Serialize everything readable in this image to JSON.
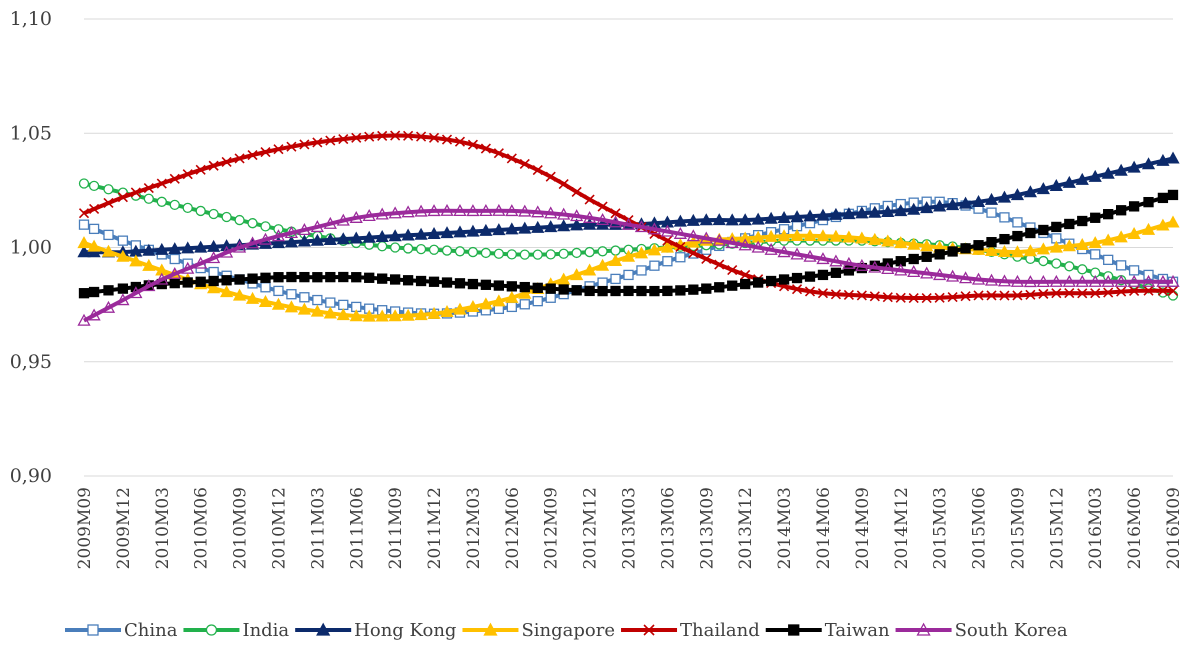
{
  "chart_data": {
    "type": "line",
    "title": "",
    "xlabel": "",
    "ylabel": "",
    "ylim": [
      0.9,
      1.1
    ],
    "y_ticks": [
      "0,90",
      "0,95",
      "1,00",
      "1,05",
      "1,10"
    ],
    "y_tick_values": [
      0.9,
      0.95,
      1.0,
      1.05,
      1.1
    ],
    "grid": "horizontal",
    "legend_position": "bottom",
    "x_tick_labels": [
      "2009M09",
      "2009M12",
      "2010M03",
      "2010M06",
      "2010M09",
      "2010M12",
      "2011M03",
      "2011M06",
      "2011M09",
      "2011M12",
      "2012M03",
      "2012M06",
      "2012M09",
      "2012M12",
      "2013M03",
      "2013M06",
      "2013M09",
      "2013M12",
      "2014M03",
      "2014M06",
      "2014M09",
      "2014M12",
      "2015M03",
      "2015M06",
      "2015M09",
      "2015M12",
      "2016M03",
      "2016M06",
      "2016M09"
    ],
    "x": [
      "2009M09",
      "2009M12",
      "2010M03",
      "2010M06",
      "2010M09",
      "2010M12",
      "2011M03",
      "2011M06",
      "2011M09",
      "2011M12",
      "2012M03",
      "2012M06",
      "2012M09",
      "2012M12",
      "2013M03",
      "2013M06",
      "2013M09",
      "2013M12",
      "2014M03",
      "2014M06",
      "2014M09",
      "2014M12",
      "2015M03",
      "2015M06",
      "2015M09",
      "2015M12",
      "2016M03",
      "2016M06",
      "2016M09"
    ],
    "series": [
      {
        "name": "China",
        "color": "#4a7ebb",
        "marker": "square-open",
        "values": [
          1.01,
          1.003,
          0.997,
          0.991,
          0.986,
          0.981,
          0.977,
          0.974,
          0.972,
          0.971,
          0.972,
          0.974,
          0.978,
          0.983,
          0.988,
          0.994,
          0.999,
          1.004,
          1.008,
          1.012,
          1.016,
          1.019,
          1.02,
          1.017,
          1.011,
          1.004,
          0.997,
          0.99,
          0.985
        ]
      },
      {
        "name": "India",
        "color": "#22b14c",
        "marker": "circle-open",
        "values": [
          1.028,
          1.024,
          1.02,
          1.016,
          1.012,
          1.008,
          1.005,
          1.002,
          1.0,
          0.999,
          0.998,
          0.997,
          0.997,
          0.998,
          0.999,
          1.0,
          1.001,
          1.002,
          1.003,
          1.003,
          1.003,
          1.002,
          1.001,
          0.999,
          0.996,
          0.993,
          0.989,
          0.984,
          0.979
        ]
      },
      {
        "name": "Hong Kong",
        "color": "#0c2a6b",
        "marker": "triangle-filled",
        "values": [
          0.998,
          0.998,
          0.999,
          1.0,
          1.001,
          1.002,
          1.003,
          1.004,
          1.005,
          1.006,
          1.007,
          1.008,
          1.009,
          1.01,
          1.01,
          1.011,
          1.012,
          1.012,
          1.013,
          1.014,
          1.015,
          1.016,
          1.018,
          1.02,
          1.023,
          1.027,
          1.031,
          1.035,
          1.039
        ]
      },
      {
        "name": "Singapore",
        "color": "#ffc000",
        "marker": "triangle-filled",
        "values": [
          1.002,
          0.996,
          0.99,
          0.984,
          0.979,
          0.975,
          0.972,
          0.97,
          0.97,
          0.971,
          0.974,
          0.978,
          0.984,
          0.99,
          0.996,
          1.0,
          1.003,
          1.004,
          1.005,
          1.005,
          1.004,
          1.002,
          1.0,
          0.999,
          0.998,
          1.0,
          1.002,
          1.006,
          1.011
        ]
      },
      {
        "name": "Thailand",
        "color": "#c00000",
        "marker": "x",
        "values": [
          1.015,
          1.022,
          1.028,
          1.034,
          1.039,
          1.043,
          1.046,
          1.048,
          1.049,
          1.048,
          1.045,
          1.039,
          1.031,
          1.021,
          1.012,
          1.003,
          0.995,
          0.988,
          0.983,
          0.98,
          0.979,
          0.978,
          0.978,
          0.979,
          0.979,
          0.98,
          0.98,
          0.981,
          0.981
        ]
      },
      {
        "name": "Taiwan",
        "color": "#000000",
        "marker": "square-filled",
        "values": [
          0.98,
          0.982,
          0.984,
          0.985,
          0.986,
          0.987,
          0.987,
          0.987,
          0.986,
          0.985,
          0.984,
          0.983,
          0.982,
          0.981,
          0.981,
          0.981,
          0.982,
          0.984,
          0.986,
          0.988,
          0.991,
          0.994,
          0.997,
          1.001,
          1.005,
          1.009,
          1.013,
          1.018,
          1.023
        ]
      },
      {
        "name": "South Korea",
        "color": "#9b2a9b",
        "marker": "triangle-open",
        "values": [
          0.968,
          0.977,
          0.986,
          0.993,
          1.0,
          1.005,
          1.009,
          1.013,
          1.015,
          1.016,
          1.016,
          1.016,
          1.015,
          1.013,
          1.01,
          1.007,
          1.004,
          1.001,
          0.998,
          0.995,
          0.992,
          0.99,
          0.988,
          0.986,
          0.985,
          0.985,
          0.985,
          0.985,
          0.985
        ]
      }
    ]
  }
}
